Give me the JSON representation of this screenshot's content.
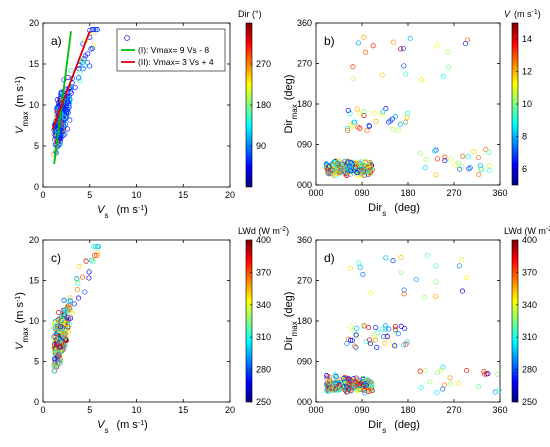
{
  "chart_data": [
    {
      "panel": "a",
      "type": "scatter",
      "panel_label": "a)",
      "xlabel": "V",
      "xlabel_sub": "s",
      "xunit": "(m s",
      "xunit_exp": "-1",
      "xunit_close": ")",
      "ylabel": "V",
      "ylabel_sub": "max",
      "yunit": "(m s",
      "yunit_exp": "-1",
      "yunit_close": ")",
      "xlim": [
        0,
        20
      ],
      "ylim": [
        0,
        20
      ],
      "xticks": [
        "0",
        "5",
        "10",
        "15",
        "20"
      ],
      "yticks": [
        "0",
        "5",
        "10",
        "15",
        "20"
      ],
      "colorbar": {
        "title": "Dir (°)",
        "range": [
          0,
          360
        ],
        "ticks": [
          "90",
          "180",
          "270"
        ],
        "colormap": "jet"
      },
      "legend": {
        "placement": "top-right",
        "entries": [
          {
            "label": "(I):  Vmax= 9 Vs - 8",
            "color": "#00c000",
            "x": [
              1.2,
              3.0
            ],
            "y": [
              2.8,
              19.0
            ]
          },
          {
            "label": "(II): Vmax= 3 Vs + 4",
            "color": "#e00000",
            "x": [
              1.0,
              5.0
            ],
            "y": [
              7.0,
              19.0
            ]
          }
        ]
      },
      "point_cloud": {
        "n": 380,
        "x_range": [
          1.0,
          6.0
        ],
        "y_range": [
          3.0,
          19.0
        ],
        "dominant_color": "#1a2fd8",
        "note_colors": [
          "#00b0ff",
          "#ffd000",
          "#ff4000",
          "#30d070"
        ]
      }
    },
    {
      "panel": "b",
      "type": "scatter",
      "panel_label": "b)",
      "xlabel": "Dir",
      "xlabel_sub": "s",
      "xunit": "(deg)",
      "ylabel": "Dir",
      "ylabel_sub": "max",
      "yunit": "(deg)",
      "xlim": [
        0,
        360
      ],
      "ylim": [
        0,
        360
      ],
      "xticks": [
        "000",
        "090",
        "180",
        "270",
        "360"
      ],
      "yticks": [
        "000",
        "090",
        "180",
        "270",
        "360"
      ],
      "colorbar": {
        "title": "V",
        "title_unit": "(m s",
        "title_exp": "-1",
        "title_close": ")",
        "range": [
          5,
          15
        ],
        "ticks": [
          "6",
          "8",
          "10",
          "12",
          "14"
        ],
        "colormap": "jet"
      },
      "point_cloud": {
        "n": 360,
        "x_range": [
          10,
          360
        ],
        "y_range": [
          10,
          340
        ]
      }
    },
    {
      "panel": "c",
      "type": "scatter",
      "panel_label": "c)",
      "xlabel": "V",
      "xlabel_sub": "s",
      "xunit": "(m s",
      "xunit_exp": "-1",
      "xunit_close": ")",
      "ylabel": "V",
      "ylabel_sub": "max",
      "yunit": "(m s",
      "yunit_exp": "-1",
      "yunit_close": ")",
      "xlim": [
        0,
        20
      ],
      "ylim": [
        0,
        20
      ],
      "xticks": [
        "0",
        "5",
        "10",
        "15",
        "20"
      ],
      "yticks": [
        "0",
        "5",
        "10",
        "15",
        "20"
      ],
      "colorbar": {
        "title": "LWd (W m",
        "title_exp": "-2",
        "title_close": ")",
        "range": [
          250,
          400
        ],
        "ticks": [
          "250",
          "280",
          "310",
          "340",
          "370",
          "400"
        ],
        "colormap": "jet"
      },
      "point_cloud": {
        "n": 380,
        "x_range": [
          1.0,
          6.0
        ],
        "y_range": [
          3.0,
          19.0
        ]
      }
    },
    {
      "panel": "d",
      "type": "scatter",
      "panel_label": "d)",
      "xlabel": "Dir",
      "xlabel_sub": "s",
      "xunit": "(deg)",
      "ylabel": "Dir",
      "ylabel_sub": "max",
      "yunit": "(deg)",
      "xlim": [
        0,
        360
      ],
      "ylim": [
        0,
        360
      ],
      "xticks": [
        "000",
        "090",
        "180",
        "270",
        "360"
      ],
      "yticks": [
        "000",
        "090",
        "180",
        "270",
        "360"
      ],
      "colorbar": {
        "title": "LWd (W m",
        "title_exp": "-2",
        "title_close": ")",
        "range": [
          250,
          400
        ],
        "ticks": [
          "250",
          "280",
          "310",
          "340",
          "370",
          "400"
        ],
        "colormap": "jet"
      },
      "point_cloud": {
        "n": 360,
        "x_range": [
          10,
          360
        ],
        "y_range": [
          10,
          340
        ]
      }
    }
  ]
}
